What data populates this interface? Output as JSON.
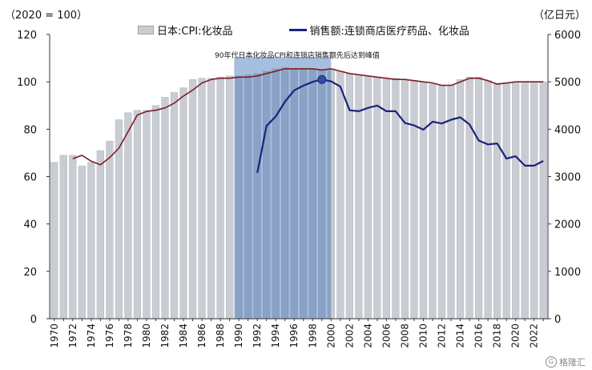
{
  "chart_data": {
    "type": "bar+line",
    "unit_left": "（2020 = 100）",
    "unit_right": "（亿日元）",
    "annotation": "90年代日本化妆品CPI和连锁店销售额先后达到峰值",
    "highlight_range": [
      1990,
      2000
    ],
    "y_left": {
      "min": 0,
      "max": 120,
      "ticks": [
        0,
        20,
        40,
        60,
        80,
        100,
        120
      ]
    },
    "y_right": {
      "min": 0,
      "max": 6000,
      "ticks": [
        0,
        1000,
        2000,
        3000,
        4000,
        5000,
        6000
      ]
    },
    "x_tick_labels": [
      "1970",
      "1972",
      "1974",
      "1976",
      "1978",
      "1980",
      "1982",
      "1984",
      "1986",
      "1988",
      "1990",
      "1992",
      "1994",
      "1996",
      "1998",
      "2000",
      "2002",
      "2004",
      "2006",
      "2008",
      "2010",
      "2012",
      "2014",
      "2016",
      "2018",
      "2020",
      "2022"
    ],
    "years": [
      1970,
      1971,
      1972,
      1973,
      1974,
      1975,
      1976,
      1977,
      1978,
      1979,
      1980,
      1981,
      1982,
      1983,
      1984,
      1985,
      1986,
      1987,
      1988,
      1989,
      1990,
      1991,
      1992,
      1993,
      1994,
      1995,
      1996,
      1997,
      1998,
      1999,
      2000,
      2001,
      2002,
      2003,
      2004,
      2005,
      2006,
      2007,
      2008,
      2009,
      2010,
      2011,
      2012,
      2013,
      2014,
      2015,
      2016,
      2017,
      2018,
      2019,
      2020,
      2021,
      2022,
      2023
    ],
    "series": [
      {
        "name": "日本:CPI:化妆品",
        "type": "bar",
        "axis": "left",
        "values": [
          66,
          69,
          69,
          64.5,
          66,
          71,
          75,
          84,
          87,
          88,
          88,
          90,
          93.5,
          95.5,
          97.5,
          101,
          101.5,
          101.5,
          102,
          102.5,
          102.5,
          103,
          103.5,
          104.5,
          105.5,
          106,
          105.5,
          105.5,
          105.5,
          105,
          105.5,
          104.5,
          103.5,
          103,
          102.5,
          102,
          101.5,
          101.5,
          101,
          100.5,
          100,
          99,
          98.5,
          98.5,
          101,
          102,
          102,
          100.5,
          99.5,
          99.5,
          100,
          100,
          100,
          100
        ]
      },
      {
        "name": "",
        "type": "line",
        "axis": "left",
        "color": "#7b1f24",
        "values": [
          null,
          null,
          67.5,
          69,
          66.5,
          65,
          68,
          72,
          79,
          86,
          87.5,
          88,
          89,
          91,
          94,
          96.5,
          99.5,
          101,
          101.5,
          101.5,
          102,
          102,
          102.5,
          103.5,
          104.5,
          105.5,
          105.5,
          105.5,
          105.5,
          105,
          105.5,
          104.5,
          103.5,
          103,
          102.5,
          102,
          101.5,
          101,
          101,
          100.5,
          100,
          99.5,
          98.5,
          98.5,
          100,
          101.5,
          101.5,
          100.5,
          99,
          99.5,
          100,
          100,
          100,
          100
        ]
      },
      {
        "name": "销售额:连锁商店医疗药品、化妆品",
        "type": "line",
        "axis": "right",
        "color": "#1a237e",
        "peak_year": 1999,
        "values": [
          null,
          null,
          null,
          null,
          null,
          null,
          null,
          null,
          null,
          null,
          null,
          null,
          null,
          null,
          null,
          null,
          null,
          null,
          null,
          null,
          null,
          null,
          3080,
          4070,
          4270,
          4580,
          4820,
          4920,
          5000,
          5050,
          5010,
          4900,
          4400,
          4380,
          4450,
          4500,
          4380,
          4380,
          4130,
          4080,
          3990,
          4160,
          4120,
          4200,
          4250,
          4100,
          3760,
          3680,
          3700,
          3380,
          3430,
          3230,
          3230,
          3330
        ]
      }
    ]
  },
  "watermark": "格隆汇"
}
